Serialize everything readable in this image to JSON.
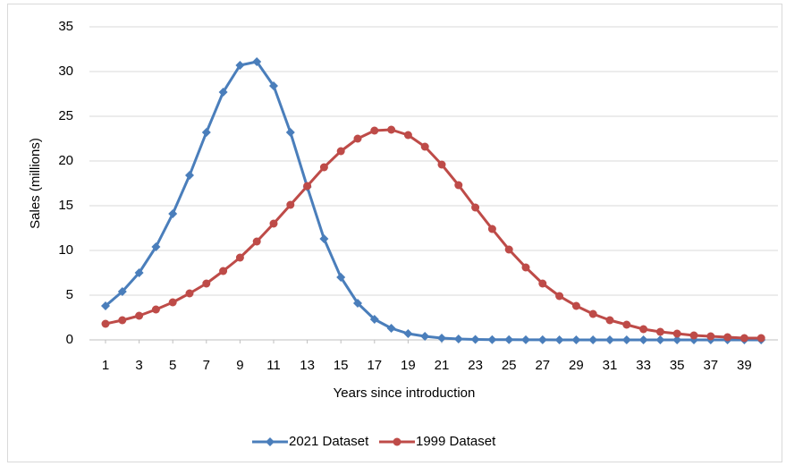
{
  "chart_data": {
    "type": "line",
    "x_label": "Years since introduction",
    "y_label": "Sales (millions)",
    "x": [
      1,
      2,
      3,
      4,
      5,
      6,
      7,
      8,
      9,
      10,
      11,
      12,
      13,
      14,
      15,
      16,
      17,
      18,
      19,
      20,
      21,
      22,
      23,
      24,
      25,
      26,
      27,
      28,
      29,
      30,
      31,
      32,
      33,
      34,
      35,
      36,
      37,
      38,
      39,
      40
    ],
    "xlim": [
      0.5,
      40.5
    ],
    "xticks": [
      1,
      3,
      5,
      7,
      9,
      11,
      13,
      15,
      17,
      19,
      21,
      23,
      25,
      27,
      29,
      31,
      33,
      35,
      37,
      39
    ],
    "ylim": [
      0,
      35
    ],
    "yticks": [
      0,
      5,
      10,
      15,
      20,
      25,
      30,
      35
    ],
    "grid": true,
    "legend": "bottom",
    "series": [
      {
        "name": "2021 Dataset",
        "color": "#4a7ebb",
        "marker": "diamond",
        "values": [
          3.8,
          5.4,
          7.5,
          10.4,
          14.1,
          18.4,
          23.2,
          27.7,
          30.7,
          31.1,
          28.4,
          23.2,
          17.1,
          11.3,
          7.0,
          4.1,
          2.3,
          1.3,
          0.7,
          0.4,
          0.2,
          0.1,
          0.05,
          0.03,
          0.02,
          0.01,
          0.01,
          0,
          0,
          0,
          0,
          0,
          0,
          0,
          0,
          0,
          0,
          0,
          0,
          0
        ]
      },
      {
        "name": "1999 Dataset",
        "color": "#be4b48",
        "marker": "circle",
        "values": [
          1.8,
          2.2,
          2.7,
          3.4,
          4.2,
          5.2,
          6.3,
          7.7,
          9.2,
          11.0,
          13.0,
          15.1,
          17.2,
          19.3,
          21.1,
          22.5,
          23.4,
          23.5,
          22.9,
          21.6,
          19.6,
          17.3,
          14.8,
          12.4,
          10.1,
          8.1,
          6.3,
          4.9,
          3.8,
          2.9,
          2.2,
          1.7,
          1.2,
          0.9,
          0.7,
          0.5,
          0.4,
          0.3,
          0.2,
          0.2
        ]
      }
    ]
  }
}
